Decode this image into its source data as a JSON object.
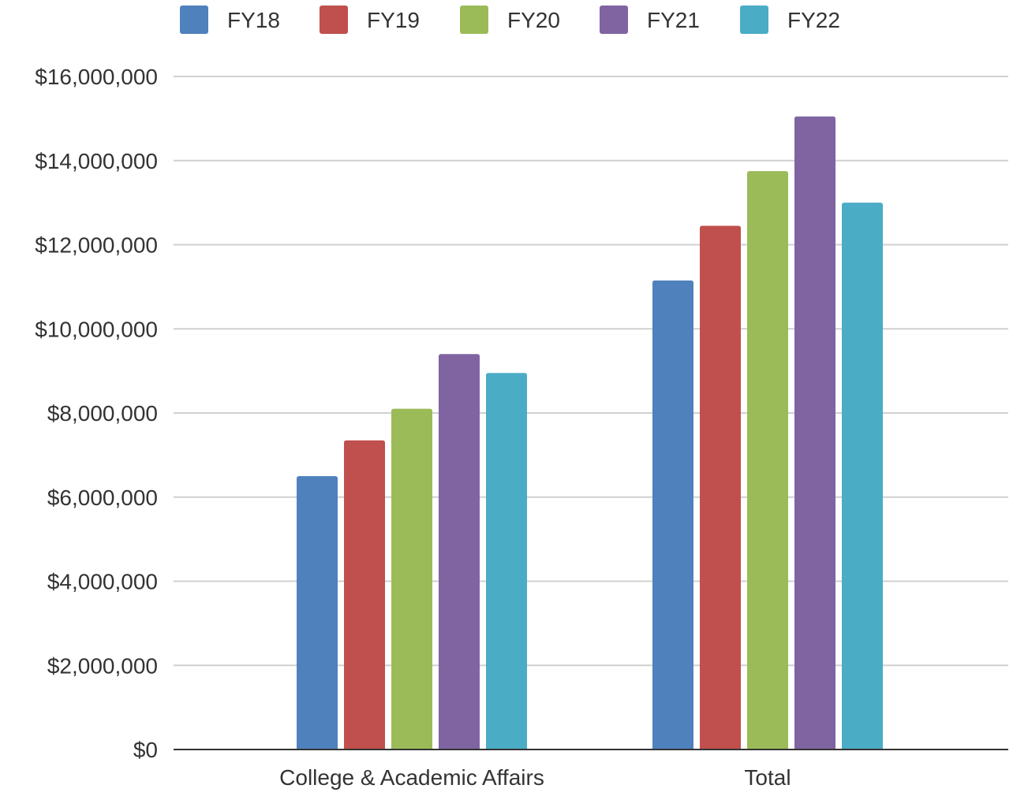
{
  "chart_data": {
    "type": "bar",
    "title": "",
    "xlabel": "",
    "ylabel": "",
    "categories": [
      "College & Academic Affairs",
      "Total"
    ],
    "series": [
      {
        "name": "FY18",
        "color": "#4f81bd",
        "values": [
          6500000,
          11150000
        ]
      },
      {
        "name": "FY19",
        "color": "#c0504d",
        "values": [
          7350000,
          12450000
        ]
      },
      {
        "name": "FY20",
        "color": "#9bbb59",
        "values": [
          8100000,
          13750000
        ]
      },
      {
        "name": "FY21",
        "color": "#8064a2",
        "values": [
          9400000,
          15050000
        ]
      },
      {
        "name": "FY22",
        "color": "#4bacc6",
        "values": [
          8950000,
          13000000
        ]
      }
    ],
    "ylim": [
      0,
      16000000
    ],
    "yticks": [
      0,
      2000000,
      4000000,
      6000000,
      8000000,
      10000000,
      12000000,
      14000000,
      16000000
    ],
    "ytick_labels": [
      "$0",
      "$2,000,000",
      "$4,000,000",
      "$6,000,000",
      "$8,000,000",
      "$10,000,000",
      "$12,000,000",
      "$14,000,000",
      "$16,000,000"
    ],
    "grid": true,
    "legend_position": "top"
  }
}
